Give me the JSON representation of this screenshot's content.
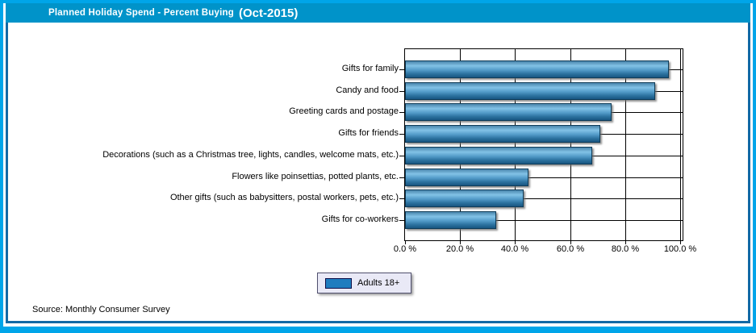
{
  "header": {
    "title_main": "Planned Holiday Spend - Percent Buying",
    "title_period": "(Oct-2015)"
  },
  "legend": {
    "label": "Adults 18+"
  },
  "footer": {
    "source": "Source: Monthly Consumer Survey"
  },
  "colors": {
    "frame_outer": "#00a5e9",
    "frame_inner": "#1269a5",
    "titlebar_bg": "#0093c9",
    "titlebar_text": "#ffffff",
    "bar_light": "#82c2e6",
    "bar_mid": "#529ac8",
    "bar_dark": "#185581",
    "legend_swatch": "#1f7dbf",
    "legend_bg": "#e9e9f6",
    "grid": "#000000"
  },
  "chart_data": {
    "type": "bar",
    "orientation": "horizontal",
    "title": "Planned Holiday Spend - Percent Buying (Oct-2015)",
    "categories": [
      "Gifts for family",
      "Candy and food",
      "Greeting cards and postage",
      "Gifts for friends",
      "Decorations (such as a Christmas tree, lights, candles, welcome mats, etc.)",
      "Flowers like poinsettias, potted plants, etc.",
      "Other gifts (such as babysitters, postal workers, pets, etc.)",
      "Gifts for co-workers"
    ],
    "series": [
      {
        "name": "Adults 18+",
        "values": [
          96,
          91,
          75,
          71,
          68,
          45,
          43,
          33
        ]
      }
    ],
    "xlabel": "",
    "ylabel": "",
    "xlim": [
      0,
      100
    ],
    "x_ticks": [
      0,
      20,
      40,
      60,
      80,
      100
    ],
    "x_tick_labels": [
      "0.0 %",
      "20.0 %",
      "40.0 %",
      "60.0 %",
      "80.0 %",
      "100.0 %"
    ],
    "grid": true,
    "legend_position": "bottom-center"
  }
}
